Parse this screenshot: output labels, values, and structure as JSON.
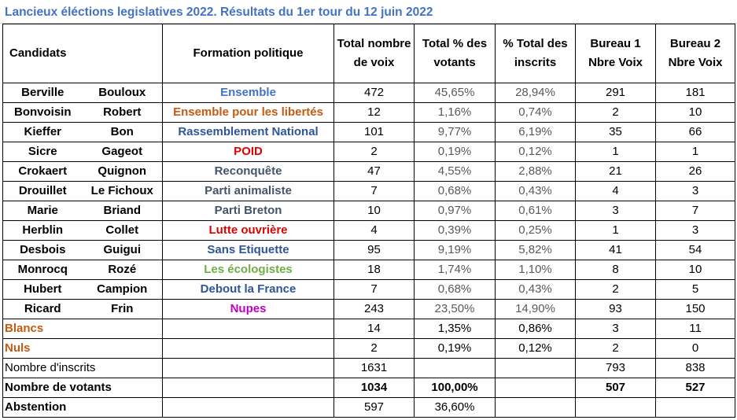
{
  "title": "Lancieux éléctions legislatives 2022. Résultats du 1er tour du 12 juin 2022",
  "headers": {
    "candidats": "Candidats",
    "formation": "Formation politique",
    "total_voix": "Total nombre de voix",
    "pct_votants": "Total % des votants",
    "pct_inscrits": "% Total des inscrits",
    "bureau1": "Bureau 1 Nbre Voix",
    "bureau2": "Bureau 2 Nbre Voix"
  },
  "candidates": [
    {
      "nom": "Berville",
      "prenom": "Bouloux",
      "formation": "Ensemble",
      "color": "#4472c4",
      "voix": "472",
      "pct_votants": "45,65%",
      "pct_inscrits": "28,94%",
      "b1": "291",
      "b2": "181"
    },
    {
      "nom": "Bonvoisin",
      "prenom": "Robert",
      "formation": "Ensemble pour les libertés",
      "color": "#c55a11",
      "voix": "12",
      "pct_votants": "1,16%",
      "pct_inscrits": "0,74%",
      "b1": "2",
      "b2": "10"
    },
    {
      "nom": "Kieffer",
      "prenom": "Bon",
      "formation": "Rassemblement National",
      "color": "#2f5597",
      "voix": "101",
      "pct_votants": "9,77%",
      "pct_inscrits": "6,19%",
      "b1": "35",
      "b2": "66"
    },
    {
      "nom": "Sicre",
      "prenom": "Gageot",
      "formation": "POID",
      "color": "#e00000",
      "voix": "2",
      "pct_votants": "0,19%",
      "pct_inscrits": "0,12%",
      "b1": "1",
      "b2": "1"
    },
    {
      "nom": "Crokaert",
      "prenom": "Quignon",
      "formation": "Reconquête",
      "color": "#44546a",
      "voix": "47",
      "pct_votants": "4,55%",
      "pct_inscrits": "2,88%",
      "b1": "21",
      "b2": "26"
    },
    {
      "nom": "Drouillet",
      "prenom": "Le Fichoux",
      "formation": "Parti animaliste",
      "color": "#44546a",
      "voix": "7",
      "pct_votants": "0,68%",
      "pct_inscrits": "0,43%",
      "b1": "4",
      "b2": "3"
    },
    {
      "nom": "Marie",
      "prenom": "Briand",
      "formation": "Parti Breton",
      "color": "#44546a",
      "voix": "10",
      "pct_votants": "0,97%",
      "pct_inscrits": "0,61%",
      "b1": "3",
      "b2": "7"
    },
    {
      "nom": "Herblin",
      "prenom": "Collet",
      "formation": "Lutte ouvrière",
      "color": "#e00000",
      "voix": "4",
      "pct_votants": "0,39%",
      "pct_inscrits": "0,25%",
      "b1": "1",
      "b2": "3"
    },
    {
      "nom": "Desbois",
      "prenom": "Guigui",
      "formation": "Sans Etiquette",
      "color": "#2f5597",
      "voix": "95",
      "pct_votants": "9,19%",
      "pct_inscrits": "5,82%",
      "b1": "41",
      "b2": "54"
    },
    {
      "nom": "Monrocq",
      "prenom": "Rozé",
      "formation": "Les écologistes",
      "color": "#70ad47",
      "voix": "18",
      "pct_votants": "1,74%",
      "pct_inscrits": "1,10%",
      "b1": "8",
      "b2": "10"
    },
    {
      "nom": "Hubert",
      "prenom": "Campion",
      "formation": "Debout la France",
      "color": "#2f5597",
      "voix": "7",
      "pct_votants": "0,68%",
      "pct_inscrits": "0,43%",
      "b1": "2",
      "b2": "5"
    },
    {
      "nom": "Ricard",
      "prenom": "Frin",
      "formation": "Nupes",
      "color": "#c000c0",
      "voix": "243",
      "pct_votants": "23,50%",
      "pct_inscrits": "14,90%",
      "b1": "93",
      "b2": "150"
    }
  ],
  "blancs": {
    "label": "Blancs",
    "color": "#c55a11",
    "voix": "14",
    "pct_votants": "1,35%",
    "pct_inscrits": "0,86%",
    "b1": "3",
    "b2": "11"
  },
  "nuls": {
    "label": "Nuls",
    "color": "#c55a11",
    "voix": "2",
    "pct_votants": "0,19%",
    "pct_inscrits": "0,12%",
    "b1": "2",
    "b2": "0"
  },
  "inscrits": {
    "label": "Nombre d'inscrits",
    "voix": "1631",
    "b1": "793",
    "b2": "838"
  },
  "votants": {
    "label": "Nombre de votants",
    "voix": "1034",
    "pct_votants": "100,00%",
    "b1": "507",
    "b2": "527"
  },
  "abstention": {
    "label": "Abstention",
    "voix": "597",
    "pct_votants": "36,60%"
  }
}
